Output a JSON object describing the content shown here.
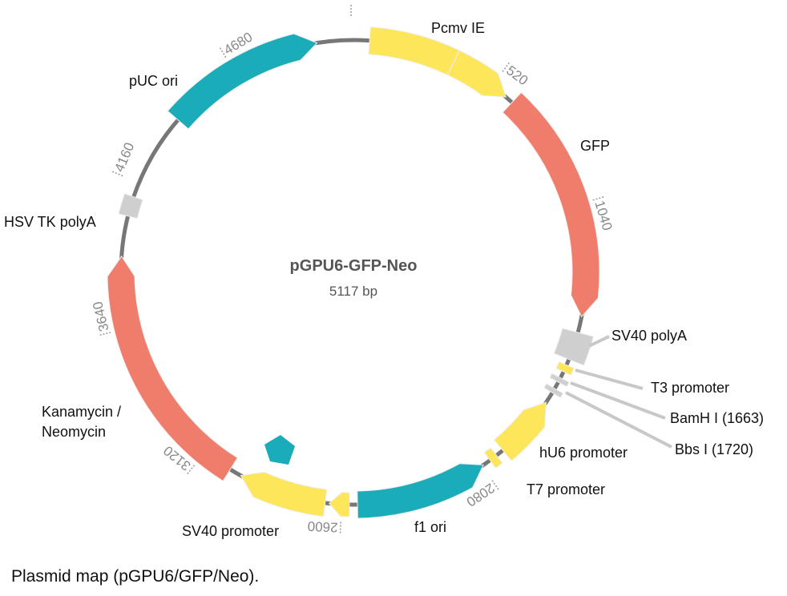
{
  "title": "pGPU6-GFP-Neo",
  "size": "5117 bp",
  "features": [
    {
      "label": "Pcmv IE"
    },
    {
      "label": "GFP"
    },
    {
      "label": "SV40 polyA"
    },
    {
      "label": "T3 promoter"
    },
    {
      "label": "BamH I (1663)"
    },
    {
      "label": "Bbs I (1720)"
    },
    {
      "label": "hU6 promoter"
    },
    {
      "label": "T7 promoter"
    },
    {
      "label": "f1 ori"
    },
    {
      "label": "SV40 promoter"
    },
    {
      "label": "Kanamycin /",
      "label2": "Neomycin"
    },
    {
      "label": "HSV TK polyA"
    },
    {
      "label": "pUC ori"
    }
  ],
  "ticks": [
    520,
    1040,
    2080,
    2600,
    3120,
    3640,
    4160,
    4680
  ],
  "caption": "Plasmid map (pGPU6/GFP/Neo)."
}
